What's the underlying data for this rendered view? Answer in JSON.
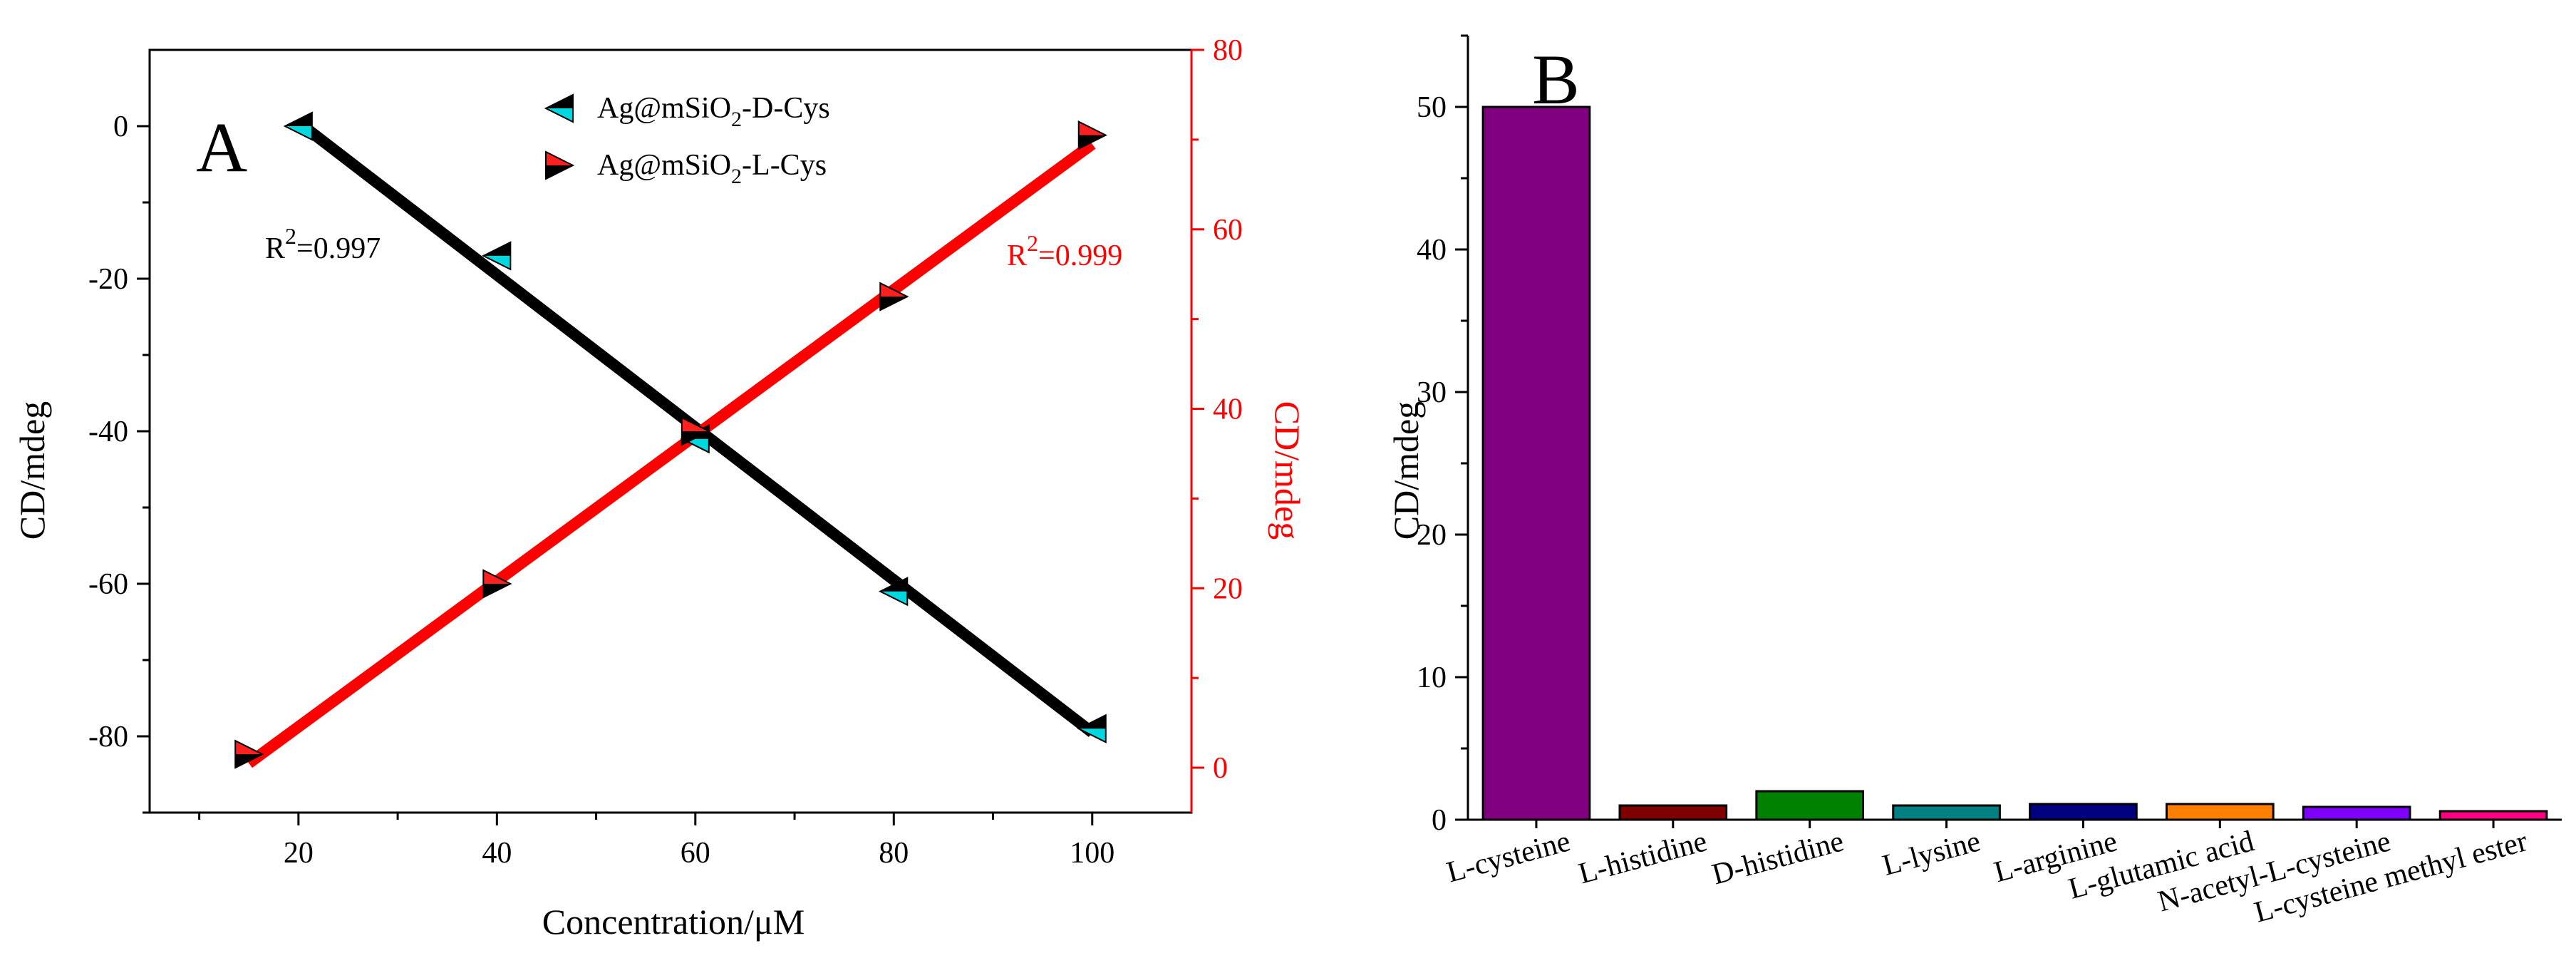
{
  "chart_data": [
    {
      "panel": "A",
      "type": "scatter",
      "panel_label": "A",
      "xlabel": "Concentration/μM",
      "ylabel": "CD/mdeg",
      "ylabel_right": "CD/mdeg",
      "xlim": [
        5,
        110
      ],
      "ylim": [
        -90,
        10
      ],
      "ylim_right": [
        -5,
        80
      ],
      "x_ticks": [
        20,
        40,
        60,
        80,
        100
      ],
      "y_ticks": [
        0,
        -20,
        -40,
        -60,
        -80
      ],
      "y_ticks_right": [
        0,
        20,
        40,
        60,
        80
      ],
      "colors": {
        "left_axis": "#000000",
        "right_axis": "#ff0000",
        "marker_fill_d": "#00d8e0",
        "marker_fill_l": "#ff2020"
      },
      "series": [
        {
          "name": "Ag@mSiO2-D-Cys",
          "legend_main": "Ag@mSiO",
          "legend_sub": "2",
          "legend_rest": "-D-Cys",
          "axis": "left",
          "color": "#000000",
          "marker": "triangle-left",
          "marker_fill": "#00d8e0",
          "x": [
            20,
            40,
            60,
            80,
            100
          ],
          "y": [
            0,
            -17,
            -41,
            -61,
            -79
          ],
          "fit": {
            "x": [
              20,
              100
            ],
            "y": [
              0.5,
              -79.5
            ]
          },
          "r2_base": "R",
          "r2_sup": "2",
          "r2_text": "=0.997"
        },
        {
          "name": "Ag@mSiO2-L-Cys",
          "legend_main": "Ag@mSiO",
          "legend_sub": "2",
          "legend_rest": "-L-Cys",
          "axis": "right",
          "color": "#ff0000",
          "marker": "triangle-right",
          "marker_fill": "#ff2020",
          "x": [
            15,
            40,
            60,
            80,
            100
          ],
          "y": [
            1.5,
            20.5,
            37.5,
            52.5,
            70.5
          ],
          "fit": {
            "x": [
              15,
              100
            ],
            "y": [
              0.5,
              69.5
            ]
          },
          "r2_base": "R",
          "r2_sup": "2",
          "r2_text": "=0.999"
        }
      ]
    },
    {
      "panel": "B",
      "type": "bar",
      "panel_label": "B",
      "ylabel": "CD/mdeg",
      "xlabel": "",
      "ylim": [
        0,
        55
      ],
      "y_ticks": [
        0,
        10,
        20,
        30,
        40,
        50
      ],
      "categories": [
        "L-cysteine",
        "L-histidine",
        "D-histidine",
        "L-lysine",
        "L-arginine",
        "L-glutamic acid",
        "N-acetyl-L-cysteine",
        "L-cysteine methyl ester"
      ],
      "values": [
        50,
        1.0,
        2.0,
        1.0,
        1.1,
        1.1,
        0.9,
        0.6
      ],
      "colors": [
        "#800080",
        "#800000",
        "#008000",
        "#008080",
        "#000080",
        "#ff8000",
        "#8000ff",
        "#ff0080"
      ]
    }
  ]
}
